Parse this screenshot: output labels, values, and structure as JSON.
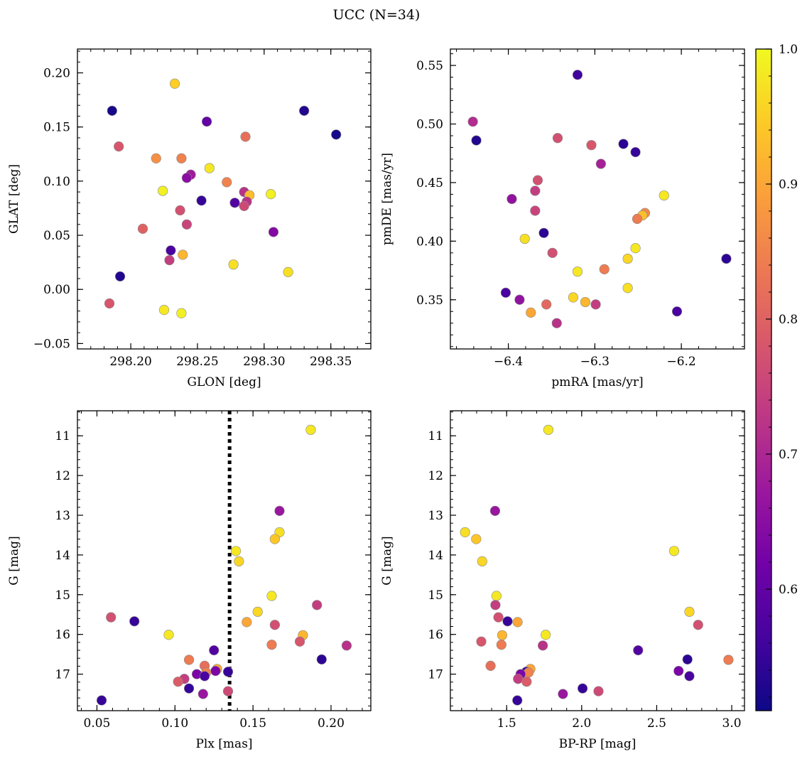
{
  "title": "UCC (N=34)",
  "colors": {
    "colormap": [
      "#0d0887",
      "#46039f",
      "#7201a8",
      "#9c179e",
      "#bd3786",
      "#d8576b",
      "#ed7953",
      "#fb9f3a",
      "#fdca26",
      "#f0f921"
    ],
    "ref_line": "#000000"
  },
  "colorbar": {
    "range": [
      0.51,
      1.0
    ],
    "ticks": [
      0.6,
      0.7,
      0.8,
      0.9,
      1.0
    ],
    "tick_labels": [
      "0.6",
      "0.7",
      "0.8",
      "0.9",
      "1.0"
    ]
  },
  "chart_data": [
    {
      "type": "scatter",
      "xlabel": "GLON [deg]",
      "ylabel": "GLAT [deg]",
      "xlim": [
        298.16,
        298.38
      ],
      "ylim": [
        -0.055,
        0.222
      ],
      "xticks": [
        298.2,
        298.25,
        298.3,
        298.35
      ],
      "xtick_labels": [
        "298.20",
        "298.25",
        "298.30",
        "298.35"
      ],
      "yticks": [
        -0.05,
        0.0,
        0.05,
        0.1,
        0.15,
        0.2
      ],
      "ytick_labels": [
        "−0.05",
        "0.00",
        "0.05",
        "0.10",
        "0.15",
        "0.20"
      ],
      "invert_y": false,
      "points": [
        {
          "x": 298.186,
          "y": 0.165,
          "c": 0.52
        },
        {
          "x": 298.191,
          "y": 0.132,
          "c": 0.78
        },
        {
          "x": 298.233,
          "y": 0.19,
          "c": 0.95
        },
        {
          "x": 298.257,
          "y": 0.155,
          "c": 0.6
        },
        {
          "x": 298.33,
          "y": 0.165,
          "c": 0.53
        },
        {
          "x": 298.354,
          "y": 0.143,
          "c": 0.52
        },
        {
          "x": 298.219,
          "y": 0.121,
          "c": 0.87
        },
        {
          "x": 298.238,
          "y": 0.121,
          "c": 0.85
        },
        {
          "x": 298.286,
          "y": 0.141,
          "c": 0.82
        },
        {
          "x": 298.259,
          "y": 0.112,
          "c": 0.98
        },
        {
          "x": 298.245,
          "y": 0.106,
          "c": 0.68
        },
        {
          "x": 298.242,
          "y": 0.103,
          "c": 0.65
        },
        {
          "x": 298.272,
          "y": 0.099,
          "c": 0.85
        },
        {
          "x": 298.224,
          "y": 0.091,
          "c": 0.99
        },
        {
          "x": 298.285,
          "y": 0.09,
          "c": 0.72
        },
        {
          "x": 298.305,
          "y": 0.088,
          "c": 0.99
        },
        {
          "x": 298.289,
          "y": 0.087,
          "c": 0.93
        },
        {
          "x": 298.253,
          "y": 0.082,
          "c": 0.55
        },
        {
          "x": 298.278,
          "y": 0.08,
          "c": 0.58
        },
        {
          "x": 298.287,
          "y": 0.081,
          "c": 0.72
        },
        {
          "x": 298.285,
          "y": 0.077,
          "c": 0.76
        },
        {
          "x": 298.237,
          "y": 0.073,
          "c": 0.77
        },
        {
          "x": 298.209,
          "y": 0.056,
          "c": 0.8
        },
        {
          "x": 298.242,
          "y": 0.06,
          "c": 0.75
        },
        {
          "x": 298.307,
          "y": 0.053,
          "c": 0.64
        },
        {
          "x": 298.23,
          "y": 0.036,
          "c": 0.57
        },
        {
          "x": 298.239,
          "y": 0.032,
          "c": 0.92
        },
        {
          "x": 298.229,
          "y": 0.027,
          "c": 0.74
        },
        {
          "x": 298.277,
          "y": 0.023,
          "c": 0.97
        },
        {
          "x": 298.318,
          "y": 0.016,
          "c": 0.97
        },
        {
          "x": 298.192,
          "y": 0.012,
          "c": 0.53
        },
        {
          "x": 298.184,
          "y": -0.013,
          "c": 0.78
        },
        {
          "x": 298.225,
          "y": -0.019,
          "c": 0.98
        },
        {
          "x": 298.238,
          "y": -0.022,
          "c": 0.99
        }
      ]
    },
    {
      "type": "scatter",
      "xlabel": "pmRA [mas/yr]",
      "ylabel": "pmDE [mas/yr]",
      "xlim": [
        -6.467,
        -6.127
      ],
      "ylim": [
        0.308,
        0.564
      ],
      "xticks": [
        -6.4,
        -6.3,
        -6.2
      ],
      "xtick_labels": [
        "−6.4",
        "−6.3",
        "−6.2"
      ],
      "yticks": [
        0.35,
        0.4,
        0.45,
        0.5,
        0.55
      ],
      "ytick_labels": [
        "0.35",
        "0.40",
        "0.45",
        "0.50",
        "0.55"
      ],
      "invert_y": false,
      "points": [
        {
          "x": -6.32,
          "y": 0.542,
          "c": 0.56
        },
        {
          "x": -6.441,
          "y": 0.502,
          "c": 0.71
        },
        {
          "x": -6.437,
          "y": 0.486,
          "c": 0.53
        },
        {
          "x": -6.343,
          "y": 0.488,
          "c": 0.77
        },
        {
          "x": -6.304,
          "y": 0.482,
          "c": 0.78
        },
        {
          "x": -6.267,
          "y": 0.483,
          "c": 0.54
        },
        {
          "x": -6.253,
          "y": 0.476,
          "c": 0.55
        },
        {
          "x": -6.293,
          "y": 0.466,
          "c": 0.69
        },
        {
          "x": -6.366,
          "y": 0.452,
          "c": 0.77
        },
        {
          "x": -6.369,
          "y": 0.443,
          "c": 0.74
        },
        {
          "x": -6.396,
          "y": 0.436,
          "c": 0.66
        },
        {
          "x": -6.22,
          "y": 0.439,
          "c": 0.98
        },
        {
          "x": -6.242,
          "y": 0.424,
          "c": 0.86
        },
        {
          "x": -6.245,
          "y": 0.422,
          "c": 0.93
        },
        {
          "x": -6.251,
          "y": 0.419,
          "c": 0.84
        },
        {
          "x": -6.369,
          "y": 0.426,
          "c": 0.75
        },
        {
          "x": -6.359,
          "y": 0.407,
          "c": 0.54
        },
        {
          "x": -6.381,
          "y": 0.402,
          "c": 0.97
        },
        {
          "x": -6.253,
          "y": 0.394,
          "c": 0.98
        },
        {
          "x": -6.349,
          "y": 0.39,
          "c": 0.77
        },
        {
          "x": -6.262,
          "y": 0.385,
          "c": 0.96
        },
        {
          "x": -6.148,
          "y": 0.385,
          "c": 0.54
        },
        {
          "x": -6.289,
          "y": 0.376,
          "c": 0.84
        },
        {
          "x": -6.32,
          "y": 0.374,
          "c": 0.98
        },
        {
          "x": -6.262,
          "y": 0.36,
          "c": 0.97
        },
        {
          "x": -6.403,
          "y": 0.356,
          "c": 0.57
        },
        {
          "x": -6.325,
          "y": 0.352,
          "c": 0.96
        },
        {
          "x": -6.387,
          "y": 0.35,
          "c": 0.66
        },
        {
          "x": -6.311,
          "y": 0.348,
          "c": 0.92
        },
        {
          "x": -6.356,
          "y": 0.346,
          "c": 0.81
        },
        {
          "x": -6.299,
          "y": 0.346,
          "c": 0.74
        },
        {
          "x": -6.374,
          "y": 0.339,
          "c": 0.9
        },
        {
          "x": -6.205,
          "y": 0.34,
          "c": 0.57
        },
        {
          "x": -6.344,
          "y": 0.33,
          "c": 0.72
        }
      ]
    },
    {
      "type": "scatter",
      "xlabel": "Plx [mas]",
      "ylabel": "G [mag]",
      "xlim": [
        0.0375,
        0.2255
      ],
      "ylim": [
        17.92,
        10.37
      ],
      "xticks": [
        0.05,
        0.1,
        0.15,
        0.2
      ],
      "xtick_labels": [
        "0.05",
        "0.10",
        "0.15",
        "0.20"
      ],
      "yticks": [
        11,
        12,
        13,
        14,
        15,
        16,
        17
      ],
      "ytick_labels": [
        "11",
        "12",
        "13",
        "14",
        "15",
        "16",
        "17"
      ],
      "invert_y": true,
      "vline": 0.135,
      "points": [
        {
          "x": 0.187,
          "y": 10.85,
          "c": 0.98
        },
        {
          "x": 0.167,
          "y": 12.89,
          "c": 0.67
        },
        {
          "x": 0.167,
          "y": 13.43,
          "c": 0.97
        },
        {
          "x": 0.164,
          "y": 13.6,
          "c": 0.94
        },
        {
          "x": 0.139,
          "y": 13.9,
          "c": 0.98
        },
        {
          "x": 0.141,
          "y": 14.16,
          "c": 0.96
        },
        {
          "x": 0.162,
          "y": 15.03,
          "c": 0.98
        },
        {
          "x": 0.191,
          "y": 15.26,
          "c": 0.74
        },
        {
          "x": 0.153,
          "y": 15.43,
          "c": 0.96
        },
        {
          "x": 0.059,
          "y": 15.57,
          "c": 0.77
        },
        {
          "x": 0.074,
          "y": 15.67,
          "c": 0.55
        },
        {
          "x": 0.146,
          "y": 15.69,
          "c": 0.9
        },
        {
          "x": 0.164,
          "y": 15.76,
          "c": 0.77
        },
        {
          "x": 0.096,
          "y": 16.01,
          "c": 0.98
        },
        {
          "x": 0.182,
          "y": 16.02,
          "c": 0.92
        },
        {
          "x": 0.18,
          "y": 16.18,
          "c": 0.78
        },
        {
          "x": 0.162,
          "y": 16.26,
          "c": 0.84
        },
        {
          "x": 0.21,
          "y": 16.28,
          "c": 0.72
        },
        {
          "x": 0.125,
          "y": 16.4,
          "c": 0.58
        },
        {
          "x": 0.194,
          "y": 16.63,
          "c": 0.54
        },
        {
          "x": 0.109,
          "y": 16.64,
          "c": 0.84
        },
        {
          "x": 0.119,
          "y": 16.79,
          "c": 0.82
        },
        {
          "x": 0.127,
          "y": 16.87,
          "c": 0.9
        },
        {
          "x": 0.126,
          "y": 16.92,
          "c": 0.63
        },
        {
          "x": 0.134,
          "y": 16.94,
          "c": 0.55
        },
        {
          "x": 0.12,
          "y": 16.96,
          "c": 0.85
        },
        {
          "x": 0.114,
          "y": 17.0,
          "c": 0.63
        },
        {
          "x": 0.119,
          "y": 17.05,
          "c": 0.57
        },
        {
          "x": 0.106,
          "y": 17.12,
          "c": 0.74
        },
        {
          "x": 0.102,
          "y": 17.19,
          "c": 0.79
        },
        {
          "x": 0.109,
          "y": 17.36,
          "c": 0.55
        },
        {
          "x": 0.134,
          "y": 17.43,
          "c": 0.76
        },
        {
          "x": 0.118,
          "y": 17.5,
          "c": 0.67
        },
        {
          "x": 0.053,
          "y": 17.66,
          "c": 0.55
        }
      ]
    },
    {
      "type": "scatter",
      "xlabel": "BP-RP [mag]",
      "ylabel": "G [mag]",
      "xlim": [
        1.125,
        3.085
      ],
      "ylim": [
        17.92,
        10.37
      ],
      "xticks": [
        1.5,
        2.0,
        2.5,
        3.0
      ],
      "xtick_labels": [
        "1.5",
        "2.0",
        "2.5",
        "3.0"
      ],
      "yticks": [
        11,
        12,
        13,
        14,
        15,
        16,
        17
      ],
      "ytick_labels": [
        "11",
        "12",
        "13",
        "14",
        "15",
        "16",
        "17"
      ],
      "invert_y": true,
      "points": [
        {
          "x": 1.778,
          "y": 10.85,
          "c": 0.98
        },
        {
          "x": 1.423,
          "y": 12.89,
          "c": 0.67
        },
        {
          "x": 1.223,
          "y": 13.43,
          "c": 0.97
        },
        {
          "x": 1.297,
          "y": 13.6,
          "c": 0.94
        },
        {
          "x": 2.616,
          "y": 13.9,
          "c": 0.98
        },
        {
          "x": 1.337,
          "y": 14.16,
          "c": 0.96
        },
        {
          "x": 1.432,
          "y": 15.03,
          "c": 0.98
        },
        {
          "x": 1.425,
          "y": 15.26,
          "c": 0.74
        },
        {
          "x": 2.718,
          "y": 15.43,
          "c": 0.96
        },
        {
          "x": 1.445,
          "y": 15.57,
          "c": 0.77
        },
        {
          "x": 1.506,
          "y": 15.67,
          "c": 0.55
        },
        {
          "x": 1.573,
          "y": 15.69,
          "c": 0.9
        },
        {
          "x": 2.776,
          "y": 15.76,
          "c": 0.77
        },
        {
          "x": 1.76,
          "y": 16.01,
          "c": 0.98
        },
        {
          "x": 1.47,
          "y": 16.02,
          "c": 0.92
        },
        {
          "x": 1.331,
          "y": 16.18,
          "c": 0.78
        },
        {
          "x": 1.465,
          "y": 16.26,
          "c": 0.84
        },
        {
          "x": 1.741,
          "y": 16.28,
          "c": 0.72
        },
        {
          "x": 2.376,
          "y": 16.4,
          "c": 0.58
        },
        {
          "x": 2.705,
          "y": 16.63,
          "c": 0.54
        },
        {
          "x": 2.978,
          "y": 16.64,
          "c": 0.84
        },
        {
          "x": 1.393,
          "y": 16.79,
          "c": 0.82
        },
        {
          "x": 1.658,
          "y": 16.87,
          "c": 0.9
        },
        {
          "x": 2.646,
          "y": 16.92,
          "c": 0.63
        },
        {
          "x": 1.631,
          "y": 16.94,
          "c": 0.55
        },
        {
          "x": 1.646,
          "y": 16.96,
          "c": 0.85
        },
        {
          "x": 1.593,
          "y": 17.0,
          "c": 0.63
        },
        {
          "x": 2.718,
          "y": 17.05,
          "c": 0.57
        },
        {
          "x": 1.576,
          "y": 17.12,
          "c": 0.74
        },
        {
          "x": 1.633,
          "y": 17.19,
          "c": 0.79
        },
        {
          "x": 2.006,
          "y": 17.36,
          "c": 0.55
        },
        {
          "x": 2.112,
          "y": 17.43,
          "c": 0.76
        },
        {
          "x": 1.875,
          "y": 17.5,
          "c": 0.67
        },
        {
          "x": 1.571,
          "y": 17.66,
          "c": 0.55
        }
      ]
    }
  ]
}
